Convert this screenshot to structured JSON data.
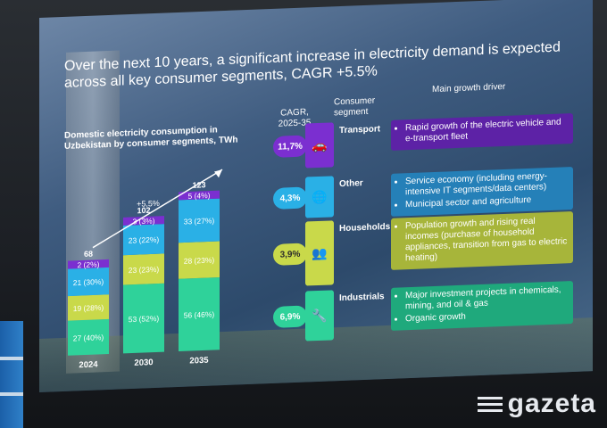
{
  "slide": {
    "title": "Over the next 10 years, a significant increase in electricity demand is expected across all key consumer segments, CAGR +5.5%",
    "chart_title": "Domestic electricity consumption in Uzbekistan by consumer segments, TWh",
    "cagr_header": "CAGR, 2025-35",
    "segment_header": "Consumer segment",
    "driver_header": "Main growth driver",
    "growth_label": "+5,5%"
  },
  "chart_data": {
    "type": "bar",
    "stacked": true,
    "title": "Domestic electricity consumption in Uzbekistan by consumer segments, TWh",
    "categories": [
      "2024",
      "2030",
      "2035"
    ],
    "totals": [
      68,
      102,
      123
    ],
    "series": [
      {
        "name": "Industrials",
        "values": [
          27,
          53,
          56
        ],
        "labels": [
          "27 (40%)",
          "53 (52%)",
          "56 (46%)"
        ],
        "color": "#2fd29a"
      },
      {
        "name": "Households",
        "values": [
          19,
          23,
          28
        ],
        "labels": [
          "19 (28%)",
          "23 (23%)",
          "28 (23%)"
        ],
        "color": "#c9d94a"
      },
      {
        "name": "Other",
        "values": [
          21,
          23,
          33
        ],
        "labels": [
          "21 (30%)",
          "23 (22%)",
          "33 (27%)"
        ],
        "color": "#2ab0e6"
      },
      {
        "name": "Transport",
        "values": [
          2,
          3,
          5
        ],
        "labels": [
          "2 (2%)",
          "3 (3%)",
          "5 (4%)"
        ],
        "color": "#7b2fd0"
      }
    ]
  },
  "segments": [
    {
      "name": "Transport",
      "cagr": "11,7%",
      "color": "#7b2fd0",
      "icon": "car-icon",
      "glyph": "🚗",
      "drivers": [
        "Rapid growth of the electric vehicle and e-transport fleet"
      ]
    },
    {
      "name": "Other",
      "cagr": "4,3%",
      "color": "#2ab0e6",
      "icon": "globe-icon",
      "glyph": "🌐",
      "drivers": [
        "Service economy (including energy-intensive IT segments/data centers)",
        "Municipal sector and agriculture"
      ]
    },
    {
      "name": "Households",
      "cagr": "3,9%",
      "color": "#c9d94a",
      "icon": "people-icon",
      "glyph": "👥",
      "drivers": [
        "Population growth and rising real incomes (purchase of household appliances, transition from gas to electric heating)"
      ]
    },
    {
      "name": "Industrials",
      "cagr": "6,9%",
      "color": "#2fd29a",
      "icon": "wrench-icon",
      "glyph": "🔧",
      "drivers": [
        "Major investment projects in chemicals, mining, and oil & gas",
        "Organic growth"
      ]
    }
  ],
  "watermark": "gazeta"
}
